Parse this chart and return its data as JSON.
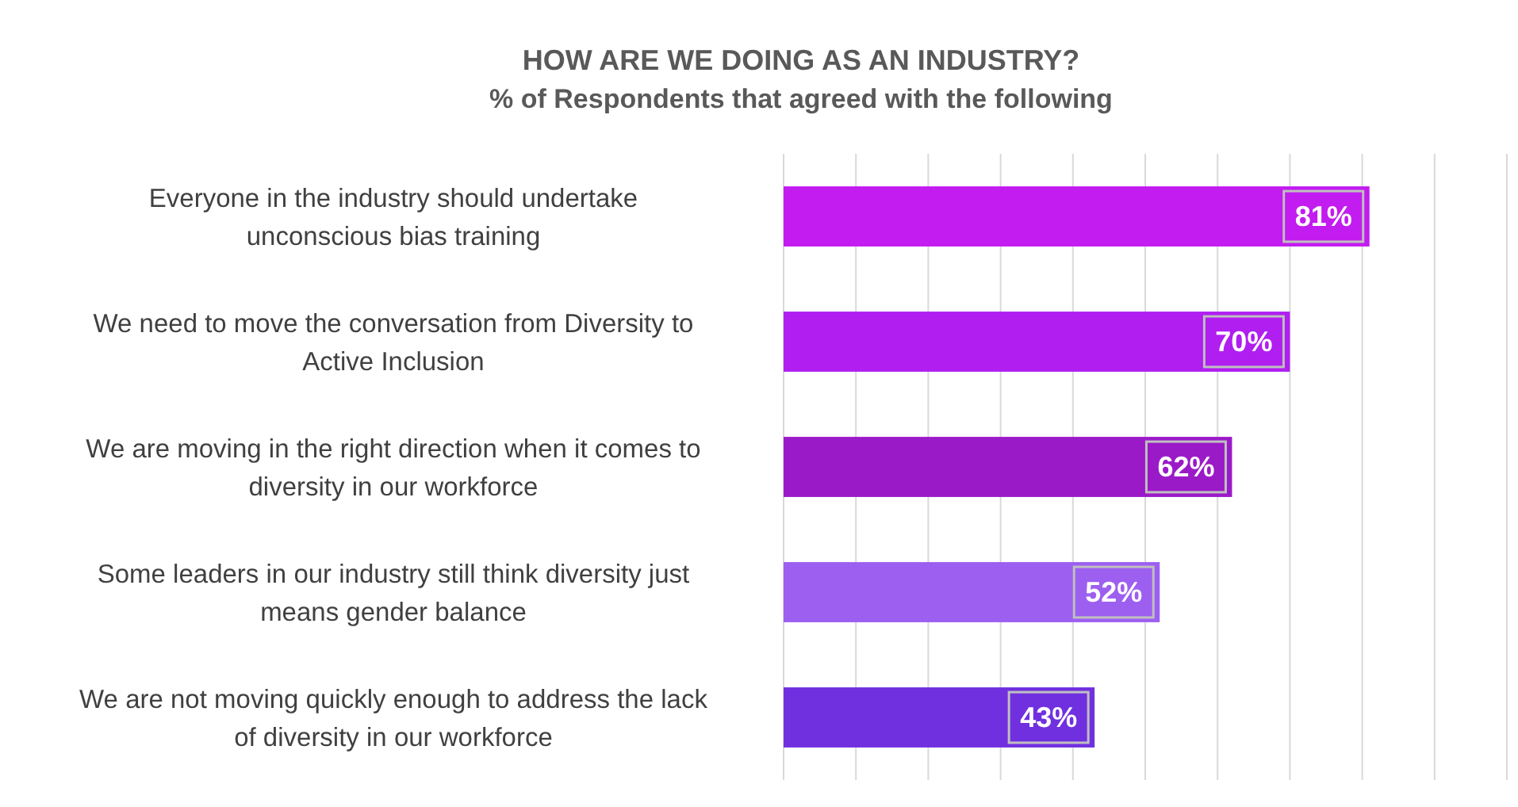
{
  "chart_data": {
    "type": "bar",
    "orientation": "horizontal",
    "title": "HOW ARE WE DOING AS AN INDUSTRY?",
    "subtitle": "% of Respondents that agreed with the following",
    "categories": [
      "Everyone in the industry should undertake unconscious bias training",
      "We need to move the conversation from Diversity to Active Inclusion",
      "We are moving in the right direction when it comes to diversity in our workforce",
      "Some leaders in our industry still think diversity just means gender balance",
      "We are not moving quickly enough to address the lack of diversity in our workforce"
    ],
    "values": [
      81,
      70,
      62,
      52,
      43
    ],
    "colors": [
      "#c21cf0",
      "#b01ef0",
      "#9b1ac8",
      "#9d5ff0",
      "#7030e0"
    ],
    "value_labels": [
      "81%",
      "70%",
      "62%",
      "52%",
      "43%"
    ],
    "xlim": [
      0,
      100
    ],
    "xticks": [
      {
        "value": 0,
        "label": null
      },
      {
        "value": 10,
        "label": null
      },
      {
        "value": 20,
        "label": null
      },
      {
        "value": 30,
        "label": null
      },
      {
        "value": 40,
        "label": null
      },
      {
        "value": 50,
        "label": null
      },
      {
        "value": 60,
        "label": null
      },
      {
        "value": 70,
        "label": null
      },
      {
        "value": 80,
        "label": null
      },
      {
        "value": 90,
        "label": null
      },
      {
        "value": 100,
        "label": null
      }
    ],
    "grid": "x"
  }
}
